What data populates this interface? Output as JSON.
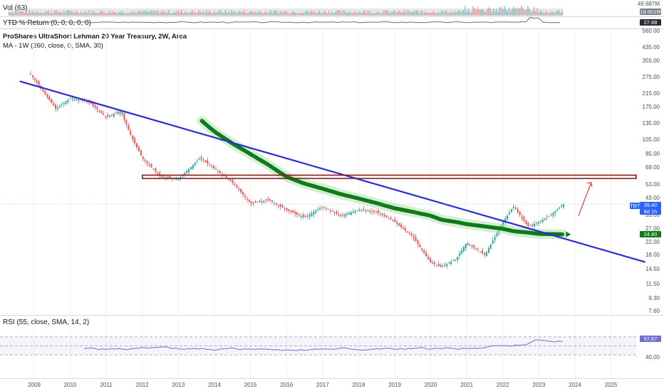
{
  "vol_pane": {
    "label": "Vol (63)",
    "scale_top": "49.687M",
    "badge": "18.601M",
    "badge_color": "#7a7f8c"
  },
  "ytd_pane": {
    "label": "YTD % Return (0, 0, 0, 0, 0)",
    "badge": "27.88",
    "badge_color": "#2a2e39"
  },
  "main_pane": {
    "title": "ProShares UltraShort Lehman 20 Year Treasury, 2W, Arca",
    "indicator": "MA - 1W (260, close, 0, SMA, 30)",
    "price_scale": [
      "560.00",
      "435.00",
      "355.00",
      "275.00",
      "215.00",
      "175.00",
      "135.00",
      "105.00",
      "85.00",
      "69.00",
      "53.00",
      "43.00",
      "33.00",
      "27.00",
      "22.00",
      "18.00",
      "14.50",
      "11.50",
      "9.30",
      "7.60"
    ],
    "symbol_badge": "TBT",
    "price_badge": "39.40",
    "countdown": "8d 1h",
    "ma_badge": "24.80",
    "colors": {
      "trendline": "#2b2bd6",
      "ma": "#0e7a1a",
      "support": "#8b1a1a",
      "arrow": "#e04040",
      "up": "#26a69a",
      "down": "#ef5350"
    }
  },
  "rsi_pane": {
    "label": "RSI (55, close, SMA, 14, 2)",
    "badge": "57.67",
    "badge_color": "#6f6fd0",
    "level": "40.00"
  },
  "x_axis": [
    "2009",
    "2010",
    "2011",
    "2012",
    "2013",
    "2014",
    "2015",
    "2016",
    "2017",
    "2018",
    "2019",
    "2020",
    "2021",
    "2022",
    "2023",
    "2024",
    "2025"
  ],
  "chart_data": {
    "type": "line",
    "title": "ProShares UltraShort Lehman 20 Year Treasury, 2W, Arca",
    "x": [
      2008.9,
      2009.2,
      2009.6,
      2010.0,
      2010.5,
      2011.0,
      2011.4,
      2011.7,
      2012.0,
      2012.5,
      2013.0,
      2013.6,
      2014.0,
      2014.5,
      2015.0,
      2015.5,
      2016.0,
      2016.5,
      2017.0,
      2017.5,
      2018.0,
      2018.5,
      2019.0,
      2019.5,
      2020.0,
      2020.3,
      2020.7,
      2021.0,
      2021.5,
      2022.0,
      2022.3,
      2022.7,
      2023.0,
      2023.3,
      2023.7
    ],
    "series": [
      {
        "name": "Price",
        "values": [
          290,
          230,
          170,
          200,
          190,
          150,
          165,
          110,
          80,
          60,
          58,
          80,
          68,
          55,
          40,
          42,
          36,
          32,
          38,
          33,
          36,
          35,
          30,
          24,
          16,
          15,
          17,
          22,
          18,
          30,
          38,
          28,
          30,
          33,
          39.4
        ]
      },
      {
        "name": "MA",
        "values": [
          null,
          null,
          null,
          null,
          null,
          null,
          null,
          null,
          null,
          null,
          null,
          145,
          120,
          100,
          85,
          72,
          60,
          54,
          50,
          46,
          43,
          40,
          37,
          35,
          33,
          31,
          30,
          29,
          28,
          27,
          26,
          25.5,
          25,
          24.9,
          24.8
        ]
      }
    ],
    "rsi": {
      "min": 0,
      "max": 100,
      "last": 57.67,
      "level": 40
    },
    "y_scale": "log"
  }
}
